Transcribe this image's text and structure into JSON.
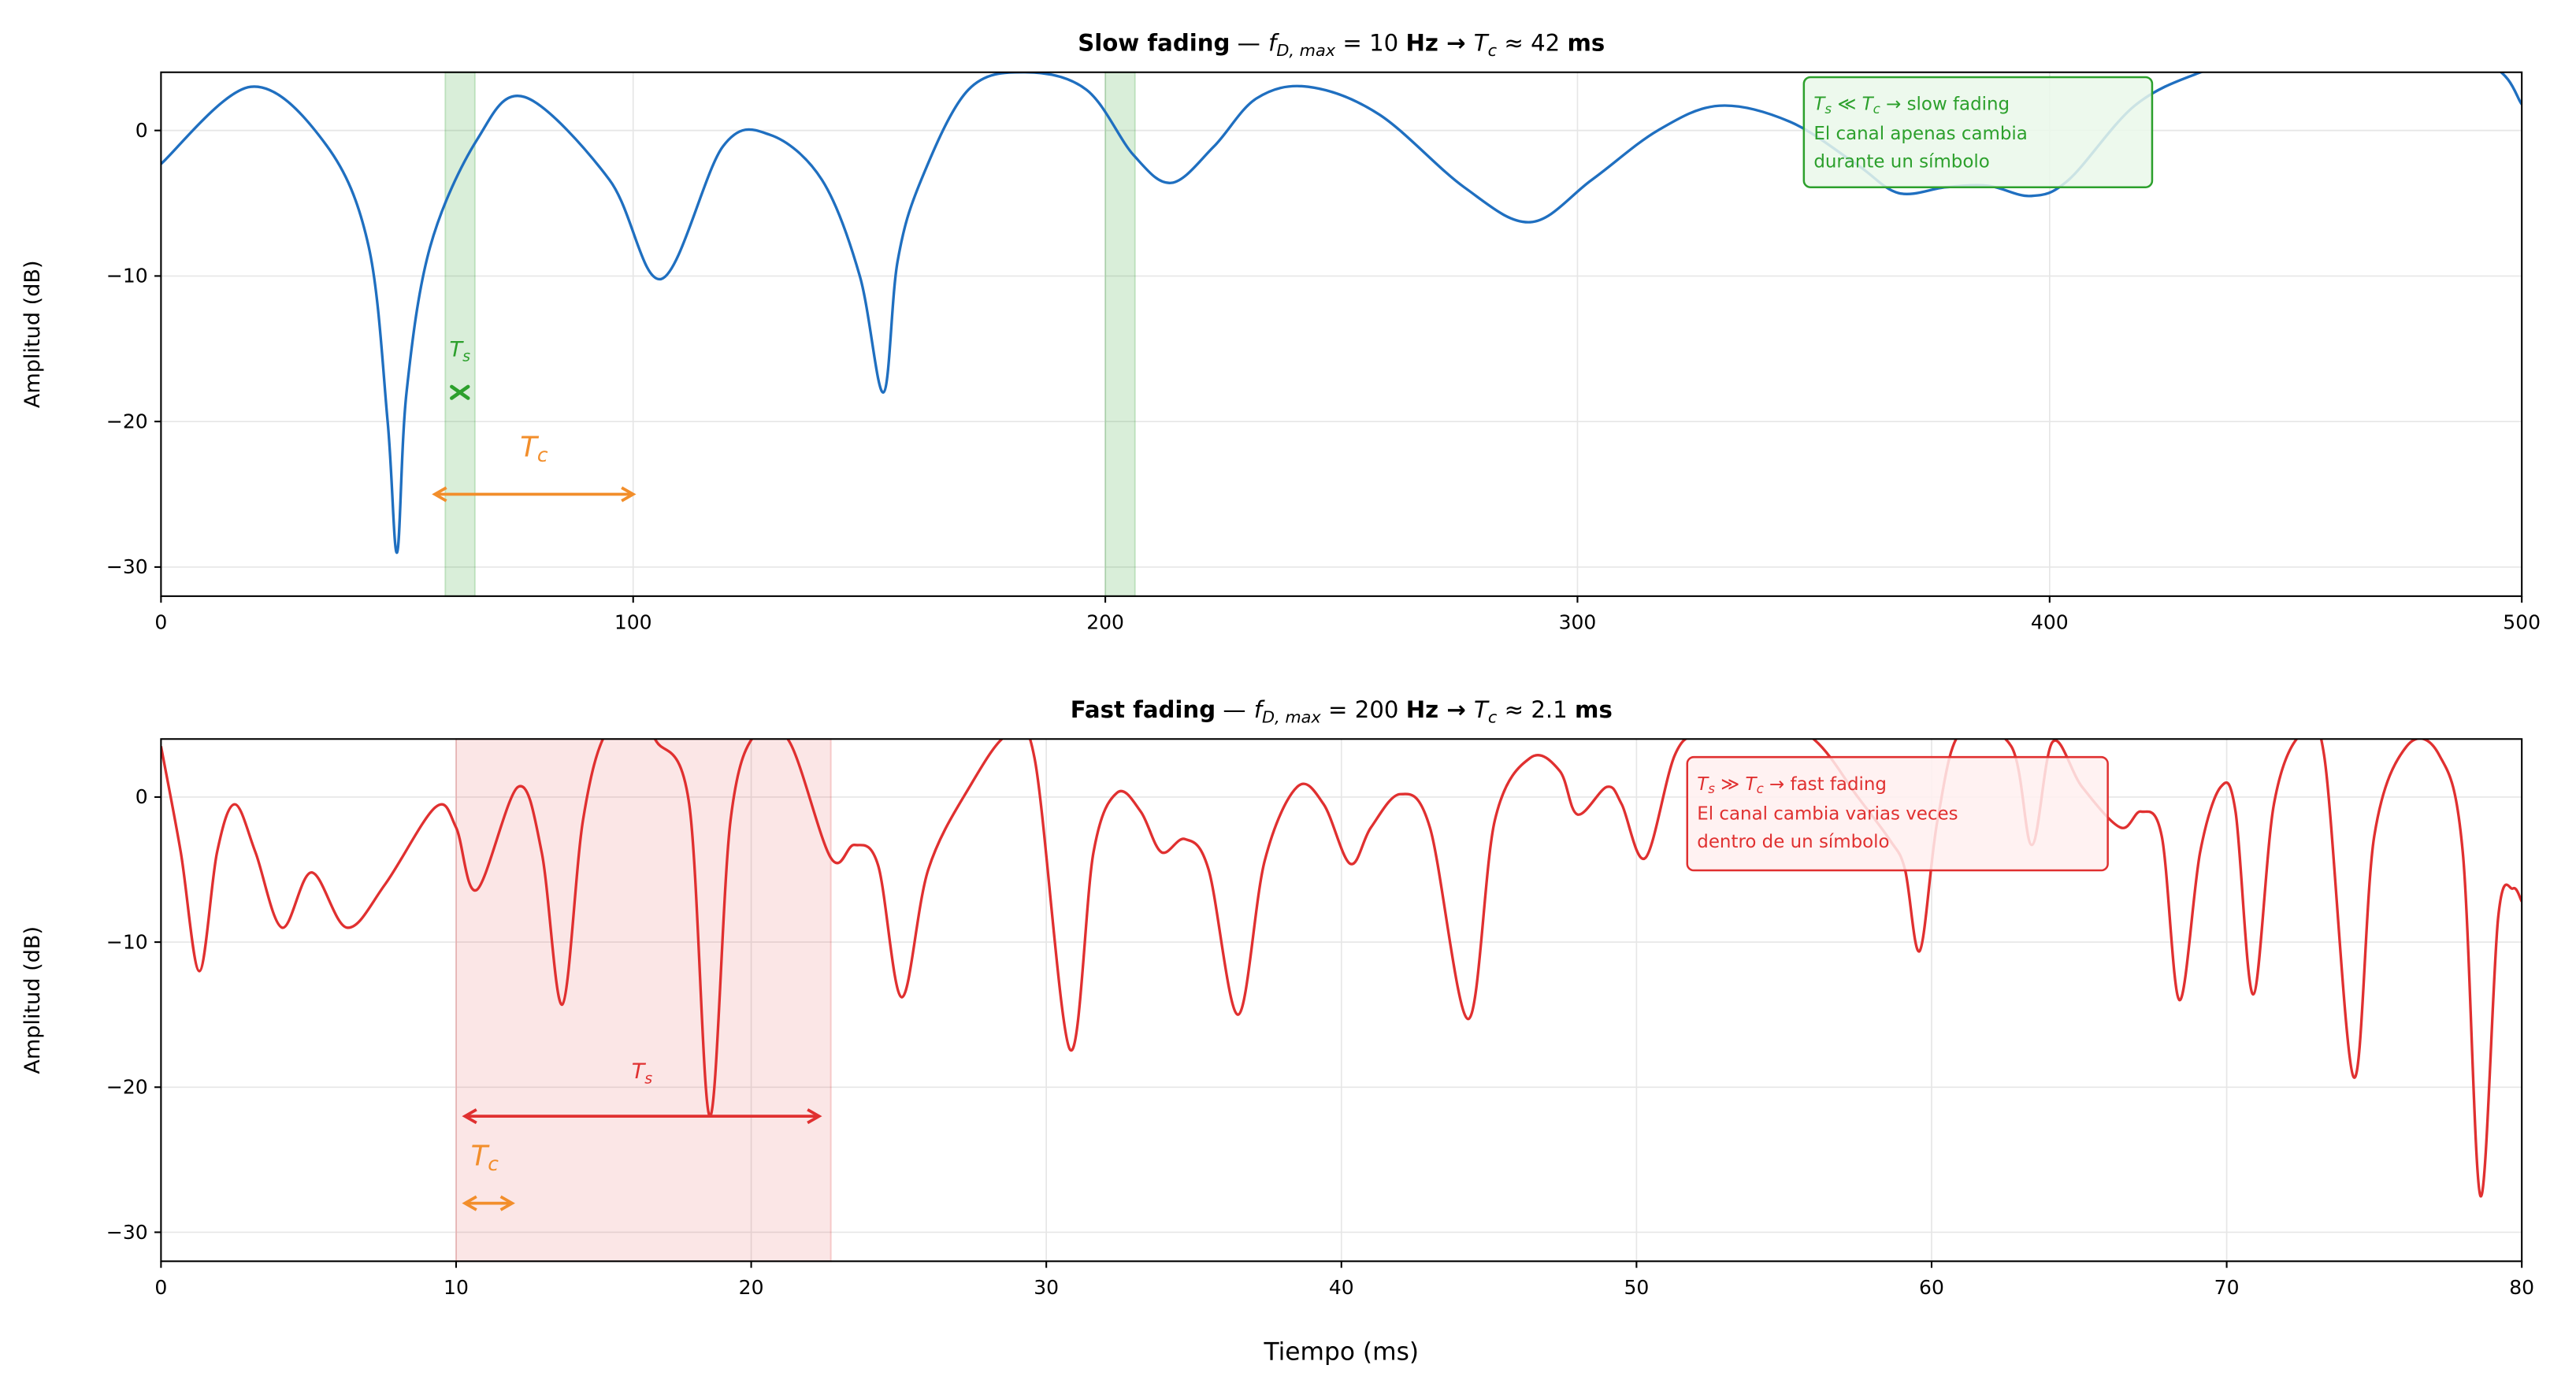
{
  "chart_data": [
    {
      "type": "line",
      "title_parts": {
        "a": "Slow fading",
        "sep": "—",
        "f": "f",
        "fsub": "D, max",
        "eq": " = 10 ",
        "unit": "Hz",
        "arrow": "→",
        "T": "T",
        "Tsub": "c",
        "approx": " ≈ 42 ",
        "unit2": "ms"
      },
      "xlabel": "",
      "ylabel": "Amplitud (dB)",
      "xlim": [
        0,
        500
      ],
      "ylim": [
        -32,
        4
      ],
      "xticks": [
        0,
        100,
        200,
        300,
        400,
        500
      ],
      "yticks": [
        0,
        -10,
        -20,
        -30
      ],
      "grid": true,
      "color": "#1f6fc0",
      "x": [
        0,
        19,
        35,
        44,
        48,
        50,
        52,
        57,
        67,
        77,
        95,
        106,
        119,
        129,
        140,
        148,
        153,
        156,
        161,
        171,
        183,
        196,
        206,
        214,
        223,
        232,
        243,
        258,
        276,
        290,
        303,
        317,
        330,
        345,
        359,
        368,
        378,
        387,
        396,
        404,
        418,
        432,
        445,
        470,
        493,
        500
      ],
      "y": [
        -2.3,
        3,
        -1,
        -8,
        -20,
        -29,
        -18,
        -8,
        -0.6,
        2.3,
        -3.4,
        -10.2,
        -1.1,
        -0.3,
        -3.4,
        -10,
        -18,
        -9,
        -3.4,
        2.8,
        4,
        2.8,
        -1.7,
        -3.6,
        -1.1,
        2.2,
        3,
        1.1,
        -3.9,
        -6.3,
        -3.4,
        0,
        1.7,
        0.6,
        -2.3,
        -4.3,
        -3.9,
        -3.8,
        -4.5,
        -3.4,
        1.7,
        4,
        5,
        5.5,
        4.5,
        1.8
      ],
      "shaded_spans": [
        [
          60.2,
          66.5
        ],
        [
          200,
          206.3
        ]
      ],
      "shade_color": "#2ca02c",
      "ts_marker": {
        "x": 63.3,
        "y": -18,
        "label": "T",
        "sub": "s",
        "color": "#2ca02c"
      },
      "tc_arrow": {
        "x0": 58,
        "x1": 100,
        "y": -25,
        "label": "T",
        "sub": "c",
        "color": "#f28e2b"
      },
      "annotation": {
        "line1": {
          "a": "T",
          "as": "s",
          "op": " ≪ ",
          "b": "T",
          "bs": "c",
          "rest": "  →  slow fading"
        },
        "line2": "El canal apenas cambia",
        "line3": "durante un símbolo",
        "color": "#2ca02c",
        "bg": "#eaf8ea"
      }
    },
    {
      "type": "line",
      "title_parts": {
        "a": "Fast fading",
        "sep": "—",
        "f": "f",
        "fsub": "D, max",
        "eq": " = 200 ",
        "unit": "Hz",
        "arrow": "→",
        "T": "T",
        "Tsub": "c",
        "approx": " ≈ 2.1 ",
        "unit2": "ms"
      },
      "xlabel": "Tiempo (ms)",
      "ylabel": "Amplitud (dB)",
      "xlim": [
        0,
        80
      ],
      "ylim": [
        -32,
        4
      ],
      "xticks": [
        0,
        10,
        20,
        30,
        40,
        50,
        60,
        70,
        80
      ],
      "yticks": [
        0,
        -10,
        -20,
        -30
      ],
      "grid": true,
      "color": "#e03030",
      "x": [
        0,
        0.67,
        1.3,
        1.9,
        2.5,
        3.2,
        4.1,
        5.1,
        6.3,
        7.6,
        9.3,
        10,
        10.7,
        12.1,
        12.9,
        13.6,
        14.3,
        15.1,
        16.2,
        16.8,
        17.9,
        18.6,
        19.3,
        20.2,
        21.3,
        22.7,
        23.5,
        24.3,
        25.1,
        26,
        27.4,
        28.7,
        29.6,
        30.8,
        31.6,
        32.4,
        33.2,
        33.9,
        34.7,
        35.5,
        36.5,
        37.4,
        38.5,
        39.4,
        40.3,
        41,
        42,
        43,
        44.3,
        45.2,
        46.4,
        47.4,
        48,
        49,
        49.5,
        50.3,
        51.3,
        52.2,
        54,
        56,
        57.5,
        58.6,
        59.1,
        59.6,
        60.2,
        61,
        62.7,
        63.4,
        64.1,
        65.1,
        66.4,
        67.1,
        67.8,
        68.4,
        69.1,
        69.8,
        70.3,
        70.9,
        71.6,
        72.5,
        73.3,
        74.3,
        75,
        76.1,
        77.2,
        78,
        78.6,
        79.2,
        79.7,
        80
      ],
      "y": [
        3.5,
        -3.8,
        -12,
        -3.8,
        -0.5,
        -3.8,
        -9,
        -5.2,
        -9,
        -6,
        -0.7,
        -2.1,
        -6.4,
        0.7,
        -3.8,
        -14.3,
        -1.6,
        4.5,
        5,
        3.8,
        -0.5,
        -22,
        -1.6,
        4.5,
        3.8,
        -4.2,
        -3.3,
        -4.7,
        -13.8,
        -5,
        0.7,
        4.3,
        2.7,
        -17.4,
        -3.8,
        0.3,
        -1,
        -3.8,
        -2.9,
        -5,
        -15,
        -4.4,
        0.7,
        -0.5,
        -4.6,
        -2.1,
        0.2,
        -2.1,
        -15.3,
        -1.6,
        2.7,
        1.8,
        -1.2,
        0.7,
        -0.5,
        -4.2,
        2.9,
        4.5,
        6,
        4,
        0,
        -3,
        -5,
        -10.6,
        -1.6,
        4.5,
        3.5,
        -3.3,
        3.8,
        0.7,
        -2.1,
        -1,
        -2.7,
        -14,
        -3.8,
        0.7,
        -1,
        -13.6,
        -0.5,
        4.3,
        2.9,
        -19.3,
        -2.7,
        3.5,
        2.9,
        -3.8,
        -27.5,
        -8.3,
        -6.3,
        -7.2
      ],
      "shaded_spans": [
        [
          10,
          22.7
        ]
      ],
      "shade_color": "#e03030",
      "ts_arrow": {
        "x0": 10.3,
        "x1": 22.3,
        "y": -22,
        "label": "T",
        "sub": "s",
        "color": "#e03030"
      },
      "tc_arrow": {
        "x0": 10.3,
        "x1": 11.9,
        "y": -28,
        "label": "T",
        "sub": "c",
        "color": "#f28e2b"
      },
      "annotation": {
        "line1": {
          "a": "T",
          "as": "s",
          "op": " ≫ ",
          "b": "T",
          "bs": "c",
          "rest": "  →  fast fading"
        },
        "line2": "El canal cambia varias veces",
        "line3": "dentro de un símbolo",
        "color": "#e03030",
        "bg": "#fff0f0"
      }
    }
  ]
}
